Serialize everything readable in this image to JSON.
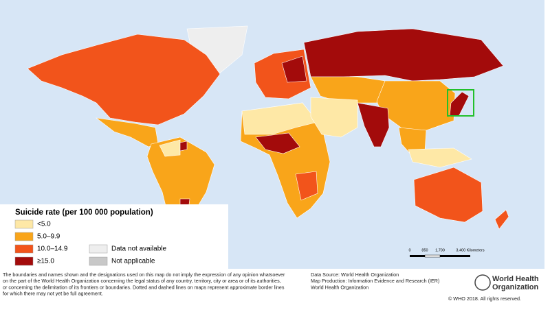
{
  "legend": {
    "title": "Suicide rate (per 100 000 population)",
    "items": [
      {
        "label": "<5.0",
        "color": "#fee8a6"
      },
      {
        "label": "5.0–9.9",
        "color": "#f9a51a"
      },
      {
        "label": "10.0–14.9",
        "color": "#f2541b"
      },
      {
        "label": "≥15.0",
        "color": "#a30b0b"
      },
      {
        "label": "Data not available",
        "color": "#eeeeee"
      },
      {
        "label": "Not applicable",
        "color": "#c8c8c8"
      }
    ]
  },
  "scale_bar": {
    "labels": [
      "0",
      "850",
      "1,700",
      "3,400 Kilometers"
    ]
  },
  "disclaimer": [
    "The boundaries and names shown and the designations used on this map do not imply the expression of any opinion whatsoever",
    "on the part of the World Health Organization concerning the legal status of any country, territory, city or area or of its authorities,",
    "or concerning the delimitation of its frontiers or boundaries. Dotted and dashed lines on maps represent approximate border lines",
    "for which there may not yet be full agreement."
  ],
  "source": [
    "Data Source: World Health Organization",
    "Map Production: Information Evidence and Research (IER)",
    "World Health Organization"
  ],
  "logo": [
    "World Health",
    "Organization"
  ],
  "copyright": "© WHO 2018. All rights reserved."
}
